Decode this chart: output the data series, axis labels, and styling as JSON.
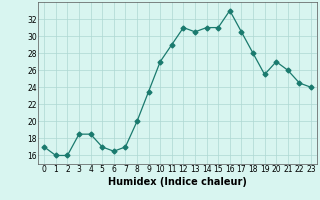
{
  "x": [
    0,
    1,
    2,
    3,
    4,
    5,
    6,
    7,
    8,
    9,
    10,
    11,
    12,
    13,
    14,
    15,
    16,
    17,
    18,
    19,
    20,
    21,
    22,
    23
  ],
  "y": [
    17,
    16,
    16,
    18.5,
    18.5,
    17,
    16.5,
    17,
    20,
    23.5,
    27,
    29,
    31,
    30.5,
    31,
    31,
    33,
    30.5,
    28,
    25.5,
    27,
    26,
    24.5,
    24
  ],
  "line_color": "#1a7a6e",
  "marker": "D",
  "marker_size": 2.5,
  "background_color": "#d8f5f0",
  "grid_color": "#aed8d3",
  "xlabel": "Humidex (Indice chaleur)",
  "ylabel": "",
  "title": "",
  "ylim": [
    15,
    34
  ],
  "xlim": [
    -0.5,
    23.5
  ],
  "yticks": [
    16,
    18,
    20,
    22,
    24,
    26,
    28,
    30,
    32
  ],
  "xticks": [
    0,
    1,
    2,
    3,
    4,
    5,
    6,
    7,
    8,
    9,
    10,
    11,
    12,
    13,
    14,
    15,
    16,
    17,
    18,
    19,
    20,
    21,
    22,
    23
  ],
  "tick_fontsize": 5.5,
  "xlabel_fontsize": 7,
  "spine_color": "#555555"
}
